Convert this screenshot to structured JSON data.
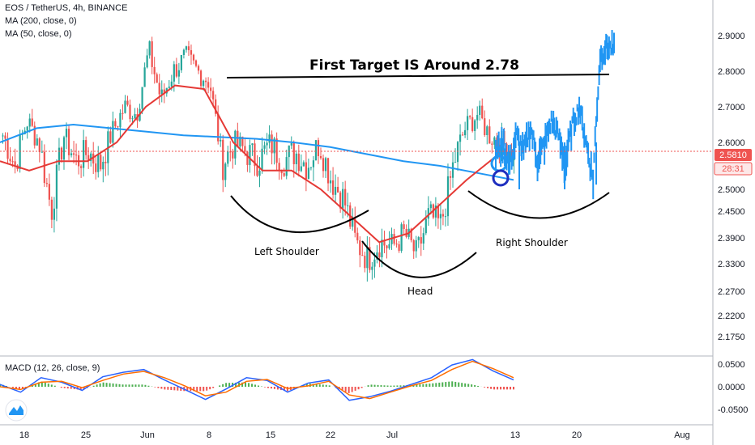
{
  "legend": {
    "symbol": "EOS / TetherUS, 4h, BINANCE",
    "ma200": "MA (200, close, 0)",
    "ma50": "MA (50, close, 0)",
    "macd": "MACD (12, 26, close, 9)"
  },
  "price_badge": {
    "value": "2.5810",
    "countdown": "28:31"
  },
  "colors": {
    "up": "#26a69a",
    "down": "#ef5350",
    "ma50": "#e53935",
    "ma200": "#2196f3",
    "projection": "#2196f3",
    "macd_line": "#2962ff",
    "signal_line": "#ff6d00",
    "hist_up": "#4caf50",
    "hist_down": "#ef5350",
    "badge": "#ef5350"
  },
  "chart_data": {
    "type": "candlestick",
    "title": "EOS / TetherUS, 4h, BINANCE",
    "price_axis": {
      "ticks": [
        "2.9000",
        "2.8000",
        "2.7000",
        "2.6000",
        "2.5000",
        "2.4500",
        "2.3900",
        "2.3300",
        "2.2700",
        "2.2200",
        "2.1750"
      ],
      "ylim": [
        2.15,
        2.95
      ]
    },
    "time_axis": {
      "ticks": [
        "18",
        "25",
        "Jun",
        "8",
        "15",
        "22",
        "Jul",
        "13",
        "20",
        "Aug"
      ]
    },
    "current_price": 2.581,
    "ohlc_anchor_closes": [
      2.62,
      2.55,
      2.66,
      2.6,
      2.45,
      2.62,
      2.56,
      2.58,
      2.55,
      2.63,
      2.7,
      2.68,
      2.86,
      2.72,
      2.8,
      2.84,
      2.8,
      2.77,
      2.55,
      2.6,
      2.58,
      2.56,
      2.6,
      2.56,
      2.58,
      2.55,
      2.6,
      2.52,
      2.48,
      2.38,
      2.34,
      2.38,
      2.37,
      2.4,
      2.35,
      2.44,
      2.42,
      2.55,
      2.64,
      2.68,
      2.62,
      2.6,
      2.58
    ],
    "series": [
      {
        "name": "MA (200, close, 0)",
        "values": [
          2.6,
          2.64,
          2.65,
          2.64,
          2.63,
          2.62,
          2.615,
          2.61,
          2.6,
          2.59,
          2.575,
          2.56,
          2.55,
          2.535,
          2.52
        ]
      },
      {
        "name": "MA (50, close, 0)",
        "values": [
          2.56,
          2.54,
          2.56,
          2.56,
          2.6,
          2.7,
          2.76,
          2.75,
          2.6,
          2.54,
          2.54,
          2.5,
          2.44,
          2.38,
          2.4,
          2.46,
          2.52,
          2.57
        ]
      }
    ],
    "projection": [
      2.58,
      2.6,
      2.55,
      2.62,
      2.58,
      2.64,
      2.56,
      2.6,
      2.66,
      2.62,
      2.55,
      2.65,
      2.7,
      2.6,
      2.52,
      2.84,
      2.87,
      2.86
    ],
    "target": 2.78,
    "annotations": [
      "First Target IS Around 2.78",
      "Left Shoulder",
      "Head",
      "Right Shoulder"
    ],
    "macd": {
      "ticks": [
        "0.0500",
        "0.0000",
        "-0.0500"
      ],
      "ylim": [
        -0.075,
        0.065
      ],
      "macd_line": [
        0.005,
        -0.012,
        0.02,
        0.01,
        -0.008,
        0.022,
        0.032,
        0.038,
        0.015,
        -0.006,
        -0.028,
        -0.005,
        0.02,
        0.014,
        -0.012,
        0.008,
        0.015,
        -0.03,
        -0.022,
        -0.01,
        0.005,
        0.02,
        0.048,
        0.06,
        0.035,
        0.015
      ],
      "signal_line": [
        0.0,
        -0.006,
        0.01,
        0.012,
        -0.002,
        0.014,
        0.028,
        0.034,
        0.02,
        0.002,
        -0.02,
        -0.012,
        0.012,
        0.016,
        -0.004,
        0.002,
        0.012,
        -0.018,
        -0.026,
        -0.012,
        0.002,
        0.014,
        0.038,
        0.056,
        0.04,
        0.02
      ]
    }
  }
}
